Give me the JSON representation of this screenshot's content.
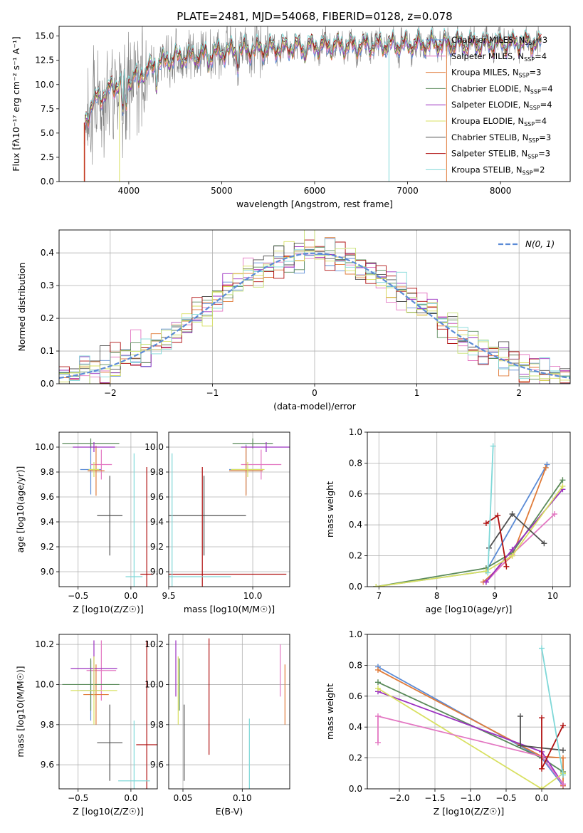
{
  "chart_data": [
    {
      "type": "line",
      "title": "PLATE=2481, MJD=54068, FIBERID=0128, z=0.078",
      "xlabel": "wavelength [Angstrom, rest frame]",
      "ylabel": "Flux [fλ10⁻¹⁷ erg cm⁻² s⁻¹ A⁻¹]",
      "xlim": [
        3250,
        8750
      ],
      "ylim": [
        0,
        16
      ],
      "xticks": [
        4000,
        5000,
        6000,
        7000,
        8000
      ],
      "yticks": [
        0.0,
        2.5,
        5.0,
        7.5,
        10.0,
        12.5,
        15.0
      ],
      "legend": "right",
      "series": [
        {
          "name": "Chabrier MILES, N_SSP=3",
          "color": "#5b8bd6"
        },
        {
          "name": "Salpeter MILES, N_SSP=4",
          "color": "#e377c2"
        },
        {
          "name": "Kroupa MILES, N_SSP=3",
          "color": "#e07b39"
        },
        {
          "name": "Chabrier ELODIE, N_SSP=4",
          "color": "#5a8a5a"
        },
        {
          "name": "Salpeter ELODIE, N_SSP=4",
          "color": "#9b30c0"
        },
        {
          "name": "Kroupa ELODIE, N_SSP=4",
          "color": "#d8e060"
        },
        {
          "name": "Chabrier STELIB, N_SSP=3",
          "color": "#505050"
        },
        {
          "name": "Salpeter STELIB, N_SSP=3",
          "color": "#b01010"
        },
        {
          "name": "Kroupa STELIB, N_SSP=2",
          "color": "#7fd8d8"
        }
      ],
      "data_color": "#808080",
      "continuum": {
        "x": [
          3530,
          3600,
          3700,
          3800,
          3900,
          4000,
          4100,
          4200,
          4300,
          4400,
          4500,
          4700,
          4900,
          5100,
          5300,
          5500,
          5800,
          6100,
          6400,
          6700,
          7000,
          7300,
          7600,
          7900,
          8200,
          8400
        ],
        "y": [
          6.0,
          8.0,
          8.8,
          9.5,
          10.2,
          10.4,
          11.0,
          11.5,
          12.2,
          12.5,
          12.8,
          12.9,
          13.2,
          13.5,
          13.6,
          13.7,
          13.9,
          14.0,
          14.0,
          14.1,
          14.1,
          14.2,
          14.2,
          14.2,
          14.3,
          14.3
        ]
      }
    },
    {
      "type": "step",
      "xlabel": "(data-model)/error",
      "ylabel": "Normed distribution",
      "xlim": [
        -2.5,
        2.5
      ],
      "ylim": [
        0,
        0.47
      ],
      "xticks": [
        -2,
        -1,
        0,
        1,
        2
      ],
      "yticks": [
        0.0,
        0.1,
        0.2,
        0.3,
        0.4
      ],
      "grid": true,
      "legend_label": "N(0, 1)",
      "legend": "top-right",
      "reference_color": "#5b8bd6"
    },
    {
      "type": "scatter",
      "xlabel": "Z [log10(Z/Z☉)]",
      "ylabel": "age  [log10(age/yr)]",
      "xlim": [
        -0.68,
        0.25
      ],
      "ylim": [
        8.88,
        10.12
      ],
      "xticks": [
        -0.5,
        0.0
      ],
      "yticks": [
        9.0,
        9.2,
        9.4,
        9.6,
        9.8,
        10.0
      ],
      "grid": true,
      "points": [
        {
          "color": "#5b8bd6",
          "x": -0.38,
          "xerr": 0.1,
          "y": 9.82,
          "yerr": 0.2
        },
        {
          "color": "#e377c2",
          "x": -0.28,
          "xerr": 0.1,
          "y": 9.86,
          "yerr": 0.12
        },
        {
          "color": "#e07b39",
          "x": -0.33,
          "xerr": 0.08,
          "y": 9.81,
          "yerr": 0.2
        },
        {
          "color": "#5a8a5a",
          "x": -0.38,
          "xerr": 0.27,
          "y": 10.03,
          "yerr": 0.04
        },
        {
          "color": "#9b30c0",
          "x": -0.35,
          "xerr": 0.2,
          "y": 10.0,
          "yerr": 0.04
        },
        {
          "color": "#d8e060",
          "x": -0.35,
          "xerr": 0.05,
          "y": 9.82,
          "yerr": 0.06
        },
        {
          "color": "#505050",
          "x": -0.2,
          "xerr": 0.12,
          "y": 9.45,
          "yerr": 0.32
        },
        {
          "color": "#b01010",
          "x": 0.15,
          "xerr": 0.06,
          "y": 8.98,
          "yerr": 0.86
        },
        {
          "color": "#7fd8d8",
          "x": 0.03,
          "xerr": 0.08,
          "y": 8.96,
          "yerr": 0.99
        }
      ]
    },
    {
      "type": "scatter",
      "xlabel": "mass [log10(M/M☉)]",
      "ylabel": "",
      "xlim": [
        9.5,
        10.22
      ],
      "ylim": [
        8.88,
        10.12
      ],
      "xticks": [
        9.5,
        10.0
      ],
      "yticks": [
        9.0,
        9.2,
        9.4,
        9.6,
        9.8,
        10.0
      ],
      "grid": true,
      "points": [
        {
          "color": "#5b8bd6",
          "x": 9.96,
          "xerr": 0.1,
          "y": 9.82,
          "yerr": 0.2
        },
        {
          "color": "#e377c2",
          "x": 10.05,
          "xerr": 0.12,
          "y": 9.86,
          "yerr": 0.12
        },
        {
          "color": "#e07b39",
          "x": 9.96,
          "xerr": 0.1,
          "y": 9.81,
          "yerr": 0.2
        },
        {
          "color": "#5a8a5a",
          "x": 10.0,
          "xerr": 0.12,
          "y": 10.03,
          "yerr": 0.04
        },
        {
          "color": "#9b30c0",
          "x": 10.08,
          "xerr": 0.15,
          "y": 10.0,
          "yerr": 0.04
        },
        {
          "color": "#d8e060",
          "x": 9.97,
          "xerr": 0.1,
          "y": 9.82,
          "yerr": 0.06
        },
        {
          "color": "#505050",
          "x": 9.71,
          "xerr": 0.25,
          "y": 9.45,
          "yerr": 0.32
        },
        {
          "color": "#b01010",
          "x": 9.7,
          "xerr": 0.5,
          "y": 8.98,
          "yerr": 0.86
        },
        {
          "color": "#7fd8d8",
          "x": 9.52,
          "xerr": 0.35,
          "y": 8.96,
          "yerr": 0.99
        }
      ]
    },
    {
      "type": "line",
      "xlabel": "age  [log10(age/yr)]",
      "ylabel": "mass weight",
      "xlim": [
        6.8,
        10.3
      ],
      "ylim": [
        0,
        1.0
      ],
      "xticks": [
        7,
        8,
        9,
        10
      ],
      "yticks": [
        0.0,
        0.2,
        0.4,
        0.6,
        0.8,
        1.0
      ],
      "grid": true,
      "series": [
        {
          "color": "#5b8bd6",
          "x": [
            6.95,
            8.85,
            9.9
          ],
          "y": [
            0.0,
            0.1,
            0.79
          ]
        },
        {
          "color": "#e07b39",
          "x": [
            8.8,
            9.3,
            9.88
          ],
          "y": [
            0.03,
            0.2,
            0.77
          ]
        },
        {
          "color": "#e377c2",
          "x": [
            8.85,
            9.3,
            10.03
          ],
          "y": [
            0.03,
            0.21,
            0.47
          ]
        },
        {
          "color": "#5a8a5a",
          "x": [
            6.95,
            8.85,
            9.3,
            10.17
          ],
          "y": [
            0.0,
            0.12,
            0.22,
            0.69
          ]
        },
        {
          "color": "#9b30c0",
          "x": [
            8.85,
            9.3,
            10.17
          ],
          "y": [
            0.03,
            0.24,
            0.63
          ]
        },
        {
          "color": "#d8e060",
          "x": [
            6.95,
            8.85,
            9.3,
            10.17
          ],
          "y": [
            0.0,
            0.1,
            0.2,
            0.65
          ]
        },
        {
          "color": "#505050",
          "x": [
            8.9,
            9.3,
            9.85
          ],
          "y": [
            0.25,
            0.47,
            0.28
          ]
        },
        {
          "color": "#b01010",
          "x": [
            8.85,
            9.05,
            9.2
          ],
          "y": [
            0.41,
            0.46,
            0.13
          ]
        },
        {
          "color": "#7fd8d8",
          "x": [
            8.88,
            8.97
          ],
          "y": [
            0.09,
            0.91
          ]
        }
      ]
    },
    {
      "type": "scatter",
      "xlabel": "Z [log10(Z/Z☉)]",
      "ylabel": "mass [log10(M/M☉)]",
      "xlim": [
        -0.68,
        0.25
      ],
      "ylim": [
        9.48,
        10.25
      ],
      "xticks": [
        -0.5,
        0.0
      ],
      "yticks": [
        9.6,
        9.8,
        10.0,
        10.2
      ],
      "grid": true,
      "points": [
        {
          "color": "#5b8bd6",
          "x": -0.38,
          "xerr": 0.1,
          "y": 9.97,
          "yerr": 0.15
        },
        {
          "color": "#e377c2",
          "x": -0.28,
          "xerr": 0.14,
          "y": 10.07,
          "yerr": 0.15
        },
        {
          "color": "#e07b39",
          "x": -0.33,
          "xerr": 0.12,
          "y": 9.95,
          "yerr": 0.15
        },
        {
          "color": "#5a8a5a",
          "x": -0.38,
          "xerr": 0.27,
          "y": 10.0,
          "yerr": 0.13
        },
        {
          "color": "#9b30c0",
          "x": -0.35,
          "xerr": 0.22,
          "y": 10.08,
          "yerr": 0.14
        },
        {
          "color": "#d8e060",
          "x": -0.35,
          "xerr": 0.22,
          "y": 9.97,
          "yerr": 0.17
        },
        {
          "color": "#505050",
          "x": -0.2,
          "xerr": 0.12,
          "y": 9.71,
          "yerr": 0.19
        },
        {
          "color": "#b01010",
          "x": 0.15,
          "xerr": 0.1,
          "y": 9.7,
          "yerr": 0.52
        },
        {
          "color": "#7fd8d8",
          "x": 0.03,
          "xerr": 0.15,
          "y": 9.52,
          "yerr": 0.3
        }
      ]
    },
    {
      "type": "scatter",
      "xlabel": "E(B-V)",
      "ylabel": "",
      "xlim": [
        0.038,
        0.14
      ],
      "ylim": [
        9.48,
        10.25
      ],
      "xticks": [
        0.05,
        0.1
      ],
      "yticks": [
        9.6,
        9.8,
        10.0,
        10.2
      ],
      "grid": true,
      "points": [
        {
          "color": "#9b30c0",
          "x": 0.044,
          "y": 10.08,
          "yerr": 0.14
        },
        {
          "color": "#5a8a5a",
          "x": 0.047,
          "y": 10.0,
          "yerr": 0.13
        },
        {
          "color": "#d8e060",
          "x": 0.046,
          "y": 9.97,
          "yerr": 0.17
        },
        {
          "color": "#505050",
          "x": 0.051,
          "y": 9.71,
          "yerr": 0.19
        },
        {
          "color": "#b01010",
          "x": 0.072,
          "y": 9.94,
          "yerr": 0.29
        },
        {
          "color": "#7fd8d8",
          "x": 0.106,
          "y": 9.62,
          "yerr": 0.21
        },
        {
          "color": "#e377c2",
          "x": 0.132,
          "y": 10.07,
          "yerr": 0.13
        },
        {
          "color": "#e07b39",
          "x": 0.136,
          "y": 9.95,
          "yerr": 0.15
        }
      ]
    },
    {
      "type": "line",
      "xlabel": "Z [log10(Z/Z☉)]",
      "ylabel": "mass weight",
      "xlim": [
        -2.45,
        0.4
      ],
      "ylim": [
        0,
        1.0
      ],
      "xticks": [
        -2.0,
        -1.5,
        -1.0,
        -0.5,
        0.0
      ],
      "yticks": [
        0.0,
        0.2,
        0.4,
        0.6,
        0.8,
        1.0
      ],
      "grid": true,
      "series": [
        {
          "color": "#5b8bd6",
          "x": [
            -2.3,
            0.0,
            0.3
          ],
          "y": [
            0.79,
            0.2,
            0.02
          ]
        },
        {
          "color": "#e07b39",
          "x": [
            -2.3,
            0.0,
            0.3,
            0.3
          ],
          "y": [
            0.77,
            0.21,
            0.2,
            0.02
          ]
        },
        {
          "color": "#5a8a5a",
          "x": [
            -2.3,
            0.0,
            0.3
          ],
          "y": [
            0.69,
            0.2,
            0.11
          ]
        },
        {
          "color": "#9b30c0",
          "x": [
            -2.3,
            0.0,
            0.3
          ],
          "y": [
            0.63,
            0.24,
            0.03
          ]
        },
        {
          "color": "#d8e060",
          "x": [
            -2.3,
            0.0,
            0.3
          ],
          "y": [
            0.65,
            0.0,
            0.1
          ]
        },
        {
          "color": "#e377c2",
          "x": [
            -2.3,
            -2.3,
            0.0,
            0.3
          ],
          "y": [
            0.3,
            0.47,
            0.21,
            0.03
          ]
        },
        {
          "color": "#505050",
          "x": [
            -0.3,
            -0.3,
            0.3
          ],
          "y": [
            0.47,
            0.28,
            0.25
          ]
        },
        {
          "color": "#b01010",
          "x": [
            0.0,
            0.0,
            0.3
          ],
          "y": [
            0.46,
            0.13,
            0.41
          ]
        },
        {
          "color": "#7fd8d8",
          "x": [
            0.0,
            0.3
          ],
          "y": [
            0.91,
            0.09
          ]
        }
      ]
    }
  ]
}
